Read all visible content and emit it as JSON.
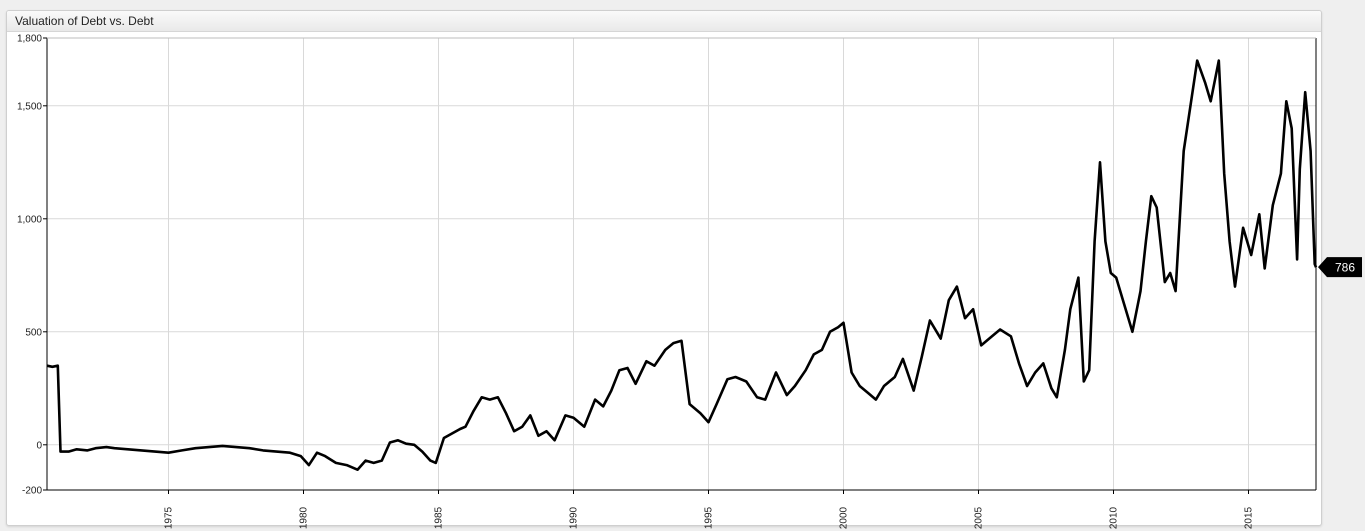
{
  "chart_data": {
    "type": "line",
    "title": "Valuation of Debt vs. Debt",
    "xlabel": "",
    "ylabel": "",
    "xlim": [
      1970.5,
      2017.5
    ],
    "ylim": [
      -200,
      1800
    ],
    "y_ticks": [
      -200,
      0,
      500,
      1000,
      1500,
      1800
    ],
    "y_tick_labels": [
      "-200",
      "0",
      "500",
      "1,000",
      "1,500",
      "1,800"
    ],
    "x_ticks": [
      1975,
      1980,
      1985,
      1990,
      1995,
      2000,
      2005,
      2010,
      2015
    ],
    "grid": true,
    "line_color": "#000000",
    "last_value_label": "786",
    "series": [
      {
        "points": [
          [
            1970.5,
            350
          ],
          [
            1970.7,
            345
          ],
          [
            1970.9,
            350
          ],
          [
            1971.0,
            -30
          ],
          [
            1971.3,
            -30
          ],
          [
            1971.6,
            -20
          ],
          [
            1972.0,
            -25
          ],
          [
            1972.3,
            -15
          ],
          [
            1972.7,
            -10
          ],
          [
            1973.0,
            -15
          ],
          [
            1973.5,
            -20
          ],
          [
            1974.0,
            -25
          ],
          [
            1974.5,
            -30
          ],
          [
            1975.0,
            -35
          ],
          [
            1975.5,
            -25
          ],
          [
            1976.0,
            -15
          ],
          [
            1976.5,
            -10
          ],
          [
            1977.0,
            -5
          ],
          [
            1977.5,
            -10
          ],
          [
            1978.0,
            -15
          ],
          [
            1978.5,
            -25
          ],
          [
            1979.0,
            -30
          ],
          [
            1979.5,
            -35
          ],
          [
            1979.9,
            -50
          ],
          [
            1980.2,
            -90
          ],
          [
            1980.5,
            -35
          ],
          [
            1980.8,
            -50
          ],
          [
            1981.2,
            -80
          ],
          [
            1981.6,
            -90
          ],
          [
            1982.0,
            -110
          ],
          [
            1982.3,
            -70
          ],
          [
            1982.6,
            -80
          ],
          [
            1982.9,
            -70
          ],
          [
            1983.2,
            10
          ],
          [
            1983.5,
            20
          ],
          [
            1983.8,
            5
          ],
          [
            1984.1,
            0
          ],
          [
            1984.4,
            -30
          ],
          [
            1984.7,
            -70
          ],
          [
            1984.9,
            -80
          ],
          [
            1985.2,
            30
          ],
          [
            1985.5,
            50
          ],
          [
            1985.8,
            70
          ],
          [
            1986.0,
            80
          ],
          [
            1986.3,
            150
          ],
          [
            1986.6,
            210
          ],
          [
            1986.9,
            200
          ],
          [
            1987.2,
            210
          ],
          [
            1987.5,
            140
          ],
          [
            1987.8,
            60
          ],
          [
            1988.1,
            80
          ],
          [
            1988.4,
            130
          ],
          [
            1988.7,
            40
          ],
          [
            1989.0,
            60
          ],
          [
            1989.3,
            20
          ],
          [
            1989.7,
            130
          ],
          [
            1990.0,
            120
          ],
          [
            1990.4,
            80
          ],
          [
            1990.8,
            200
          ],
          [
            1991.1,
            170
          ],
          [
            1991.4,
            240
          ],
          [
            1991.7,
            330
          ],
          [
            1992.0,
            340
          ],
          [
            1992.3,
            270
          ],
          [
            1992.7,
            370
          ],
          [
            1993.0,
            350
          ],
          [
            1993.4,
            420
          ],
          [
            1993.7,
            450
          ],
          [
            1994.0,
            460
          ],
          [
            1994.3,
            180
          ],
          [
            1994.7,
            140
          ],
          [
            1995.0,
            100
          ],
          [
            1995.3,
            180
          ],
          [
            1995.7,
            290
          ],
          [
            1996.0,
            300
          ],
          [
            1996.4,
            280
          ],
          [
            1996.8,
            210
          ],
          [
            1997.1,
            200
          ],
          [
            1997.5,
            320
          ],
          [
            1997.9,
            220
          ],
          [
            1998.2,
            260
          ],
          [
            1998.6,
            330
          ],
          [
            1998.9,
            400
          ],
          [
            1999.2,
            420
          ],
          [
            1999.5,
            500
          ],
          [
            1999.8,
            520
          ],
          [
            2000.0,
            540
          ],
          [
            2000.3,
            320
          ],
          [
            2000.6,
            260
          ],
          [
            2000.9,
            230
          ],
          [
            2001.2,
            200
          ],
          [
            2001.5,
            260
          ],
          [
            2001.9,
            300
          ],
          [
            2002.2,
            380
          ],
          [
            2002.6,
            240
          ],
          [
            2002.9,
            390
          ],
          [
            2003.2,
            550
          ],
          [
            2003.6,
            470
          ],
          [
            2003.9,
            640
          ],
          [
            2004.2,
            700
          ],
          [
            2004.5,
            560
          ],
          [
            2004.8,
            600
          ],
          [
            2005.1,
            440
          ],
          [
            2005.5,
            480
          ],
          [
            2005.8,
            510
          ],
          [
            2006.2,
            480
          ],
          [
            2006.5,
            360
          ],
          [
            2006.8,
            260
          ],
          [
            2007.1,
            320
          ],
          [
            2007.4,
            360
          ],
          [
            2007.7,
            250
          ],
          [
            2007.9,
            210
          ],
          [
            2008.2,
            420
          ],
          [
            2008.4,
            600
          ],
          [
            2008.7,
            740
          ],
          [
            2008.9,
            280
          ],
          [
            2009.1,
            330
          ],
          [
            2009.3,
            900
          ],
          [
            2009.5,
            1250
          ],
          [
            2009.7,
            900
          ],
          [
            2009.9,
            760
          ],
          [
            2010.1,
            740
          ],
          [
            2010.4,
            620
          ],
          [
            2010.7,
            500
          ],
          [
            2011.0,
            680
          ],
          [
            2011.2,
            900
          ],
          [
            2011.4,
            1100
          ],
          [
            2011.6,
            1050
          ],
          [
            2011.9,
            720
          ],
          [
            2012.1,
            760
          ],
          [
            2012.3,
            680
          ],
          [
            2012.6,
            1300
          ],
          [
            2012.9,
            1540
          ],
          [
            2013.1,
            1700
          ],
          [
            2013.4,
            1600
          ],
          [
            2013.6,
            1520
          ],
          [
            2013.9,
            1700
          ],
          [
            2014.1,
            1200
          ],
          [
            2014.3,
            900
          ],
          [
            2014.5,
            700
          ],
          [
            2014.8,
            960
          ],
          [
            2015.1,
            840
          ],
          [
            2015.4,
            1020
          ],
          [
            2015.6,
            780
          ],
          [
            2015.9,
            1060
          ],
          [
            2016.2,
            1200
          ],
          [
            2016.4,
            1520
          ],
          [
            2016.6,
            1400
          ],
          [
            2016.8,
            820
          ],
          [
            2016.9,
            1220
          ],
          [
            2017.1,
            1560
          ],
          [
            2017.3,
            1300
          ],
          [
            2017.45,
            800
          ],
          [
            2017.5,
            786
          ]
        ]
      }
    ]
  }
}
